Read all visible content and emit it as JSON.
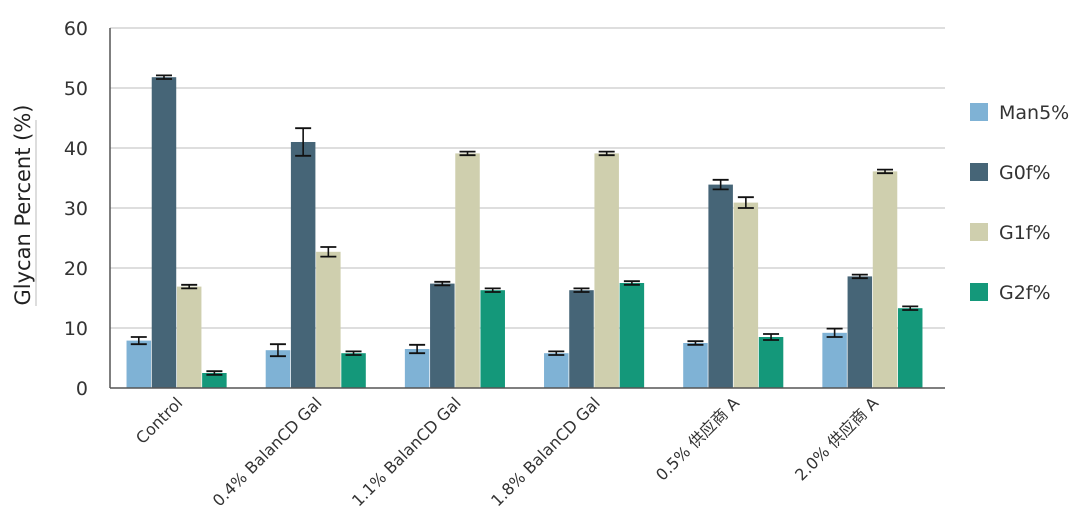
{
  "colors": {
    "Man5%": "#7fb2d5",
    "G0f%": "#466577",
    "G1f%": "#cfcfae",
    "G2f%": "#14987a",
    "grid": "#d3d3d3",
    "axis": "#555555",
    "errorbar": "#111111"
  },
  "chart_data": {
    "type": "bar",
    "title": "",
    "xlabel": "",
    "ylabel": "Glycan Percent (%)",
    "ylim": [
      0,
      60
    ],
    "yticks": [
      0,
      10,
      20,
      30,
      40,
      50,
      60
    ],
    "grid": true,
    "legend_position": "right",
    "categories": [
      "Control",
      "0.4% BalanCD Gal",
      "1.1% BalanCD Gal",
      "1.8% BalanCD Gal",
      "0.5% 供应商 A",
      "2.0% 供应商 A"
    ],
    "series": [
      {
        "name": "Man5%",
        "values": [
          7.9,
          6.3,
          6.5,
          5.8,
          7.5,
          9.2
        ],
        "errors": [
          0.6,
          1.0,
          0.7,
          0.3,
          0.3,
          0.7
        ]
      },
      {
        "name": "G0f%",
        "values": [
          51.8,
          41.0,
          17.4,
          16.3,
          33.9,
          18.6
        ],
        "errors": [
          0.3,
          2.3,
          0.3,
          0.3,
          0.8,
          0.3
        ]
      },
      {
        "name": "G1f%",
        "values": [
          16.9,
          22.7,
          39.1,
          39.1,
          30.9,
          36.1
        ],
        "errors": [
          0.3,
          0.8,
          0.3,
          0.3,
          0.9,
          0.3
        ]
      },
      {
        "name": "G2f%",
        "values": [
          2.5,
          5.8,
          16.3,
          17.5,
          8.5,
          13.3
        ],
        "errors": [
          0.3,
          0.3,
          0.3,
          0.3,
          0.5,
          0.3
        ]
      }
    ]
  }
}
